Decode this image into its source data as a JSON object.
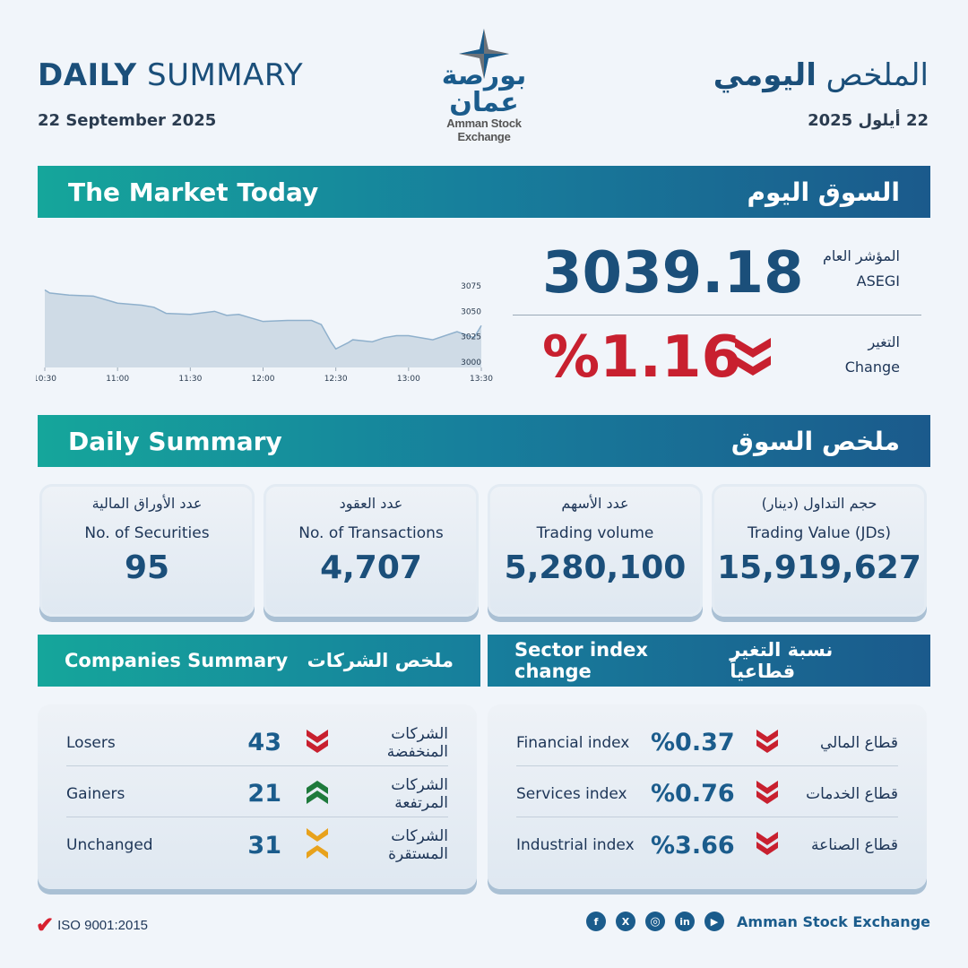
{
  "header": {
    "title_bold": "DAILY",
    "title_rest": " SUMMARY",
    "date_en": "22 September 2025",
    "title_ar_light": "الملخص ",
    "title_ar_bold": "اليومي",
    "date_ar": "22 أيلول 2025",
    "logo": {
      "ar": "بورصة عمان",
      "en": "Amman Stock Exchange"
    }
  },
  "market_today": {
    "title_en": "The Market Today",
    "title_ar": "السوق اليوم",
    "index_label_ar": "المؤشر العام",
    "index_label_en": "ASEGI",
    "index_value": "3039.18",
    "change_label_ar": "التغير",
    "change_label_en": "Change",
    "change_value": "%1.16",
    "change_direction": "down"
  },
  "chart_data": {
    "type": "area",
    "x_ticks": [
      "10:30",
      "11:00",
      "11:30",
      "12:00",
      "12:30",
      "13:00",
      "13:30"
    ],
    "y_ticks": [
      "3075",
      "3050",
      "3025",
      "3000"
    ],
    "ylim": [
      3000,
      3080
    ],
    "x": [
      "10:30",
      "10:32",
      "10:40",
      "10:50",
      "11:00",
      "11:10",
      "11:15",
      "11:20",
      "11:30",
      "11:40",
      "11:45",
      "11:50",
      "12:00",
      "12:10",
      "12:20",
      "12:24",
      "12:28",
      "12:30",
      "12:35",
      "12:37",
      "12:45",
      "12:50",
      "12:55",
      "13:00",
      "13:10",
      "13:20",
      "13:27",
      "13:30"
    ],
    "values": [
      3071,
      3068,
      3066,
      3065,
      3058,
      3056,
      3054,
      3048,
      3047,
      3050,
      3046,
      3047,
      3040,
      3041,
      3041,
      3037,
      3020,
      3013,
      3019,
      3022,
      3020,
      3024,
      3026,
      3026,
      3022,
      3030,
      3024,
      3036
    ],
    "fill": "#cfdbe6",
    "line": "#8fb0cc"
  },
  "daily_summary": {
    "title_en": "Daily Summary",
    "title_ar": "ملخص السوق",
    "cards": [
      {
        "ar": "عدد الأوراق المالية",
        "en": "No. of Securities",
        "value": "95"
      },
      {
        "ar": "عدد العقود",
        "en": "No. of Transactions",
        "value": "4,707"
      },
      {
        "ar": "عدد الأسهم",
        "en": "Trading volume",
        "value": "5,280,100"
      },
      {
        "ar": "حجم التداول (دينار)",
        "en": "Trading Value (JDs)",
        "value": "15,919,627"
      }
    ]
  },
  "companies": {
    "title_en": "Companies Summary",
    "title_ar": "ملخص الشركات",
    "rows": [
      {
        "en": "Losers",
        "value": "43",
        "icon": "chevron-double-down",
        "ar": "الشركات المنخفضة"
      },
      {
        "en": "Gainers",
        "value": "21",
        "icon": "chevron-double-up",
        "ar": "الشركات المرتفعة"
      },
      {
        "en": "Unchanged",
        "value": "31",
        "icon": "chevrons-converge",
        "ar": "الشركات المستقرة"
      }
    ]
  },
  "sectors": {
    "title_en": "Sector index change",
    "title_ar": "نسبة التغير قطاعياً",
    "rows": [
      {
        "en": "Financial index",
        "value": "%0.37",
        "icon": "chevron-double-down",
        "ar": "قطاع المالي"
      },
      {
        "en": "Services index",
        "value": "%0.76",
        "icon": "chevron-double-down",
        "ar": "قطاع الخدمات"
      },
      {
        "en": "Industrial index",
        "value": "%3.66",
        "icon": "chevron-double-down",
        "ar": "قطاع الصناعة"
      }
    ]
  },
  "footer": {
    "iso": "ISO 9001:2015",
    "brand": "Amman Stock Exchange",
    "social": [
      "f",
      "X",
      "ig",
      "in",
      "yt"
    ]
  },
  "colors": {
    "primary": "#1b4f7a",
    "teal": "#15a69b",
    "down": "#c8202f",
    "up": "#1e7a3c",
    "neutral": "#e8a21c"
  }
}
